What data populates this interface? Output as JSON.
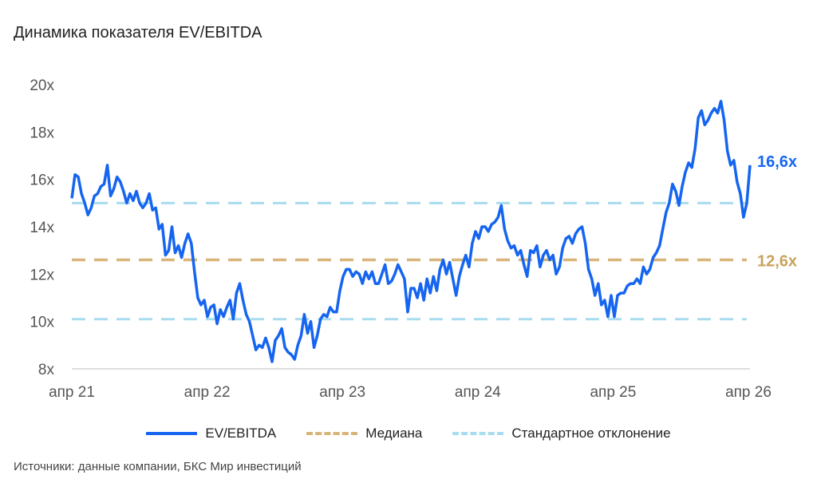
{
  "chart_data": {
    "type": "line",
    "title": "Динамика показателя EV/EBITDA",
    "source": "Источники: данные компании, БКС Мир инвестиций",
    "x_range": [
      "2021-04",
      "2026-04"
    ],
    "x_ticks": [
      "апр 21",
      "апр 22",
      "апр 23",
      "апр 24",
      "апр 25",
      "апр 26"
    ],
    "y_ticks": [
      "8x",
      "10x",
      "12x",
      "14x",
      "16x",
      "18x",
      "20x"
    ],
    "y_tick_values": [
      8,
      10,
      12,
      14,
      16,
      18,
      20
    ],
    "ylim": [
      8,
      20
    ],
    "series": [
      {
        "name": "EV/EBITDA",
        "color": "#1565f0",
        "last_label": "16,6x",
        "values": [
          15.2,
          16.2,
          16.1,
          15.4,
          15.0,
          14.5,
          14.8,
          15.3,
          15.4,
          15.7,
          15.8,
          16.6,
          15.3,
          15.6,
          16.1,
          15.9,
          15.5,
          15.0,
          15.4,
          15.1,
          15.5,
          15.0,
          14.8,
          15.0,
          15.4,
          14.7,
          14.8,
          13.9,
          14.1,
          12.8,
          13.0,
          14.0,
          12.9,
          13.2,
          12.7,
          13.3,
          13.7,
          13.3,
          12.1,
          11.0,
          10.7,
          10.9,
          10.2,
          10.6,
          10.7,
          9.9,
          10.5,
          10.2,
          10.6,
          10.9,
          10.1,
          11.2,
          11.6,
          10.9,
          10.3,
          10.0,
          9.4,
          8.8,
          9.0,
          8.9,
          9.3,
          8.9,
          8.3,
          9.2,
          9.4,
          9.7,
          8.9,
          8.7,
          8.6,
          8.4,
          9.0,
          9.4,
          10.3,
          9.5,
          10.0,
          8.9,
          9.4,
          10.1,
          10.3,
          10.2,
          10.6,
          10.4,
          10.4,
          11.3,
          11.9,
          12.2,
          12.2,
          11.9,
          12.1,
          12.0,
          11.6,
          12.1,
          11.8,
          12.1,
          11.6,
          11.6,
          12.0,
          12.4,
          11.6,
          11.7,
          12.0,
          12.4,
          12.1,
          11.8,
          10.4,
          11.4,
          11.4,
          11.0,
          11.6,
          10.9,
          11.8,
          11.2,
          11.9,
          11.3,
          12.2,
          12.6,
          12.0,
          12.5,
          11.8,
          11.1,
          11.9,
          12.4,
          12.8,
          12.3,
          13.3,
          13.8,
          13.5,
          14.0,
          14.0,
          13.8,
          14.1,
          14.2,
          14.4,
          14.9,
          13.9,
          13.4,
          13.1,
          13.2,
          12.8,
          13.0,
          12.4,
          11.9,
          13.0,
          12.9,
          13.2,
          12.3,
          12.8,
          13.0,
          12.6,
          12.8,
          12.0,
          12.3,
          13.1,
          13.5,
          13.6,
          13.3,
          13.7,
          13.9,
          14.0,
          13.3,
          12.2,
          11.8,
          11.1,
          11.6,
          10.7,
          10.9,
          10.2,
          11.1,
          10.2,
          11.1,
          11.2,
          11.2,
          11.5,
          11.6,
          11.6,
          11.8,
          11.6,
          12.3,
          12.0,
          12.2,
          12.7,
          12.9,
          13.2,
          13.9,
          14.6,
          15.0,
          15.8,
          15.5,
          14.9,
          15.7,
          16.3,
          16.7,
          16.5,
          17.3,
          18.6,
          18.9,
          18.3,
          18.5,
          18.8,
          19.0,
          18.8,
          19.3,
          18.5,
          17.2,
          16.6,
          16.8,
          15.9,
          15.4,
          14.4,
          15.0,
          16.6
        ]
      },
      {
        "name": "Медиана",
        "color": "#d8b57a",
        "value": 12.6,
        "last_label": "12,6x"
      },
      {
        "name": "Стандартное отклонение",
        "color": "#a8dcef",
        "values": [
          15.0,
          10.1
        ]
      }
    ],
    "legend_position": "bottom"
  }
}
